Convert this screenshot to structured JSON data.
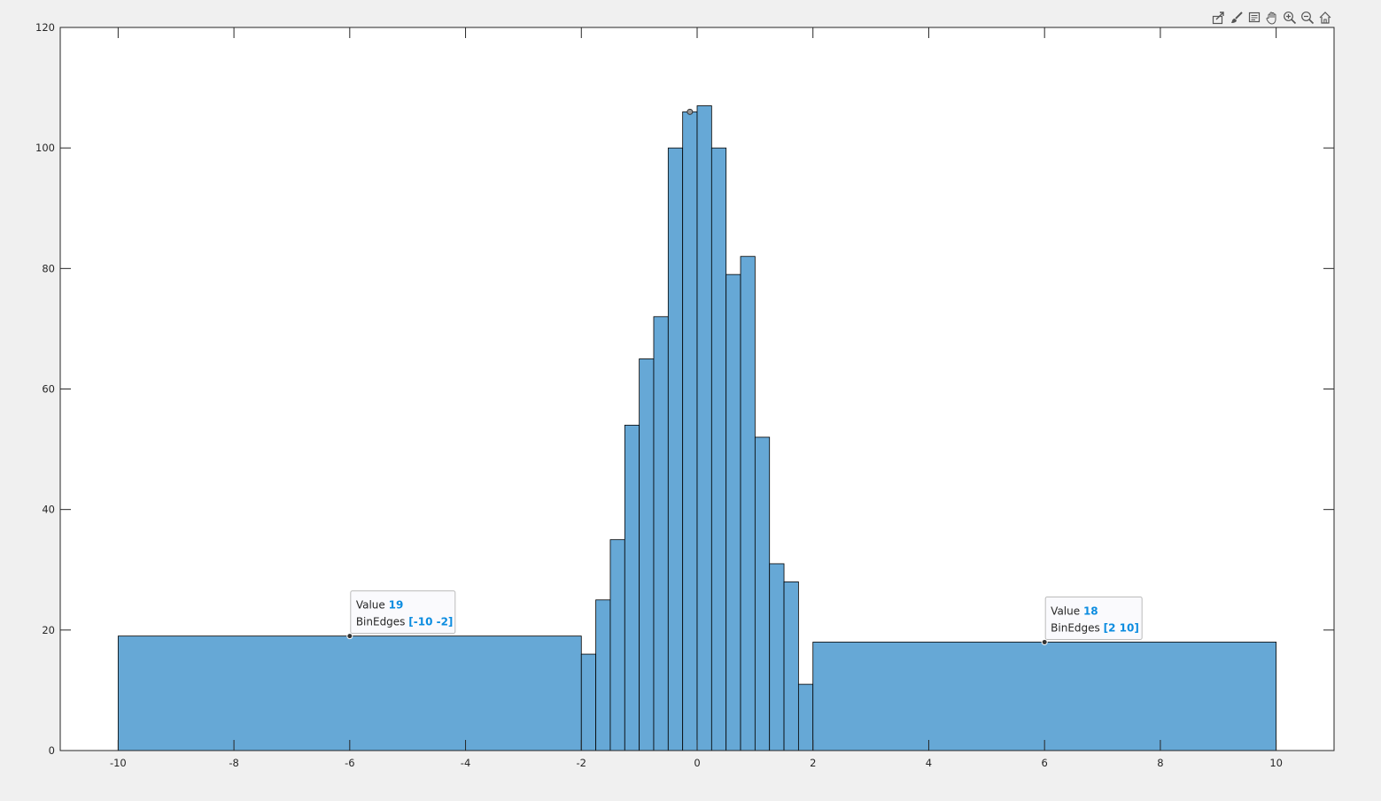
{
  "toolbar": {
    "icons": [
      "export-icon",
      "brush-icon",
      "datatip-icon",
      "pan-icon",
      "zoom-in-icon",
      "zoom-out-icon",
      "home-icon"
    ]
  },
  "chart_data": {
    "type": "bar",
    "title": "",
    "xlabel": "",
    "ylabel": "",
    "xlim": [
      -11,
      11
    ],
    "ylim": [
      0,
      120
    ],
    "grid": false,
    "bar_color": "#66a8d6",
    "edge_color": "#000000",
    "xticks": [
      -10,
      -8,
      -6,
      -4,
      -2,
      0,
      2,
      4,
      6,
      8,
      10
    ],
    "xtick_labels": [
      "-10",
      "-8",
      "-6",
      "-4",
      "-2",
      "0",
      "2",
      "4",
      "6",
      "8",
      "10"
    ],
    "yticks": [
      0,
      20,
      40,
      60,
      80,
      100,
      120
    ],
    "ytick_labels": [
      "0",
      "20",
      "40",
      "60",
      "80",
      "100",
      "120"
    ],
    "bins": [
      {
        "edges": [
          -10,
          -2
        ],
        "value": 19
      },
      {
        "edges": [
          -2,
          -1.75
        ],
        "value": 16
      },
      {
        "edges": [
          -1.75,
          -1.5
        ],
        "value": 25
      },
      {
        "edges": [
          -1.5,
          -1.25
        ],
        "value": 35
      },
      {
        "edges": [
          -1.25,
          -1
        ],
        "value": 54
      },
      {
        "edges": [
          -1,
          -0.75
        ],
        "value": 65
      },
      {
        "edges": [
          -0.75,
          -0.5
        ],
        "value": 72
      },
      {
        "edges": [
          -0.5,
          -0.25
        ],
        "value": 100
      },
      {
        "edges": [
          -0.25,
          0
        ],
        "value": 106
      },
      {
        "edges": [
          0,
          0.25
        ],
        "value": 107
      },
      {
        "edges": [
          0.25,
          0.5
        ],
        "value": 100
      },
      {
        "edges": [
          0.5,
          0.75
        ],
        "value": 79
      },
      {
        "edges": [
          0.75,
          1
        ],
        "value": 82
      },
      {
        "edges": [
          1,
          1.25
        ],
        "value": 52
      },
      {
        "edges": [
          1.25,
          1.5
        ],
        "value": 31
      },
      {
        "edges": [
          1.5,
          1.75
        ],
        "value": 28
      },
      {
        "edges": [
          1.75,
          2
        ],
        "value": 11
      },
      {
        "edges": [
          2,
          10
        ],
        "value": 18
      }
    ],
    "datatips": [
      {
        "x": -6,
        "y": 19,
        "value_label": "Value",
        "value": "19",
        "edges_label": "BinEdges",
        "edges": "[-10 -2]"
      },
      {
        "x": 6,
        "y": 18,
        "value_label": "Value",
        "value": "18",
        "edges_label": "BinEdges",
        "edges": "[2 10]"
      }
    ],
    "datatip_markers": [
      {
        "x": -0.125,
        "y": 106
      }
    ]
  }
}
